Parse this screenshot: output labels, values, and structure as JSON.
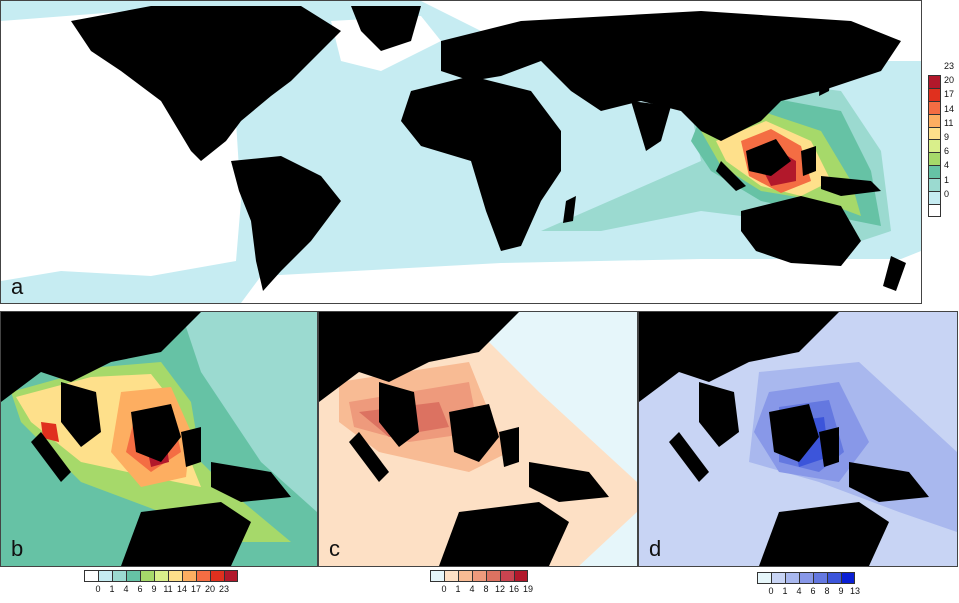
{
  "panels": {
    "a": {
      "label": "a"
    },
    "b": {
      "label": "b"
    },
    "c": {
      "label": "c"
    },
    "d": {
      "label": "d"
    }
  },
  "legend_a": {
    "ticks": [
      "23",
      "20",
      "17",
      "14",
      "11",
      "9",
      "6",
      "4",
      "1",
      "0"
    ],
    "colors": [
      "#b2182b",
      "#e0301e",
      "#f46d43",
      "#fdae61",
      "#fee08b",
      "#d9ef8b",
      "#a6d96a",
      "#66c2a5",
      "#9bdad0",
      "#c6ecf2",
      "#ffffff"
    ]
  },
  "legend_b": {
    "ticks": [
      "0",
      "1",
      "4",
      "6",
      "9",
      "11",
      "14",
      "17",
      "20",
      "23"
    ],
    "colors": [
      "#ffffff",
      "#c6ecf2",
      "#9bdad0",
      "#66c2a5",
      "#a6d96a",
      "#d9ef8b",
      "#fee08b",
      "#fdae61",
      "#f46d43",
      "#e0301e",
      "#b2182b"
    ]
  },
  "legend_c": {
    "ticks": [
      "0",
      "1",
      "4",
      "8",
      "12",
      "16",
      "19"
    ],
    "colors": [
      "#e6f6fa",
      "#fde0c5",
      "#f8bb94",
      "#ee9a7c",
      "#dc7261",
      "#c94450",
      "#b2182b"
    ]
  },
  "legend_d": {
    "ticks": [
      "0",
      "1",
      "4",
      "6",
      "8",
      "9",
      "13"
    ],
    "colors": [
      "#e6f6fa",
      "#c8d4f4",
      "#a9b8ee",
      "#8898e8",
      "#6478e0",
      "#3c55da",
      "#0a1fd4"
    ]
  },
  "colors": {
    "land": "#000000",
    "ocean_low": "#ffffff",
    "ocean_1": "#c6ecf2"
  }
}
